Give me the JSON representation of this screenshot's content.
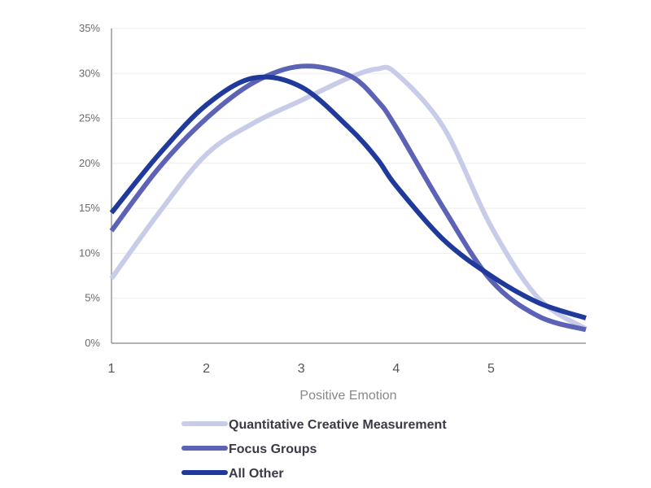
{
  "chart_data": {
    "type": "line",
    "title": "",
    "xlabel": "Positive Emotion",
    "ylabel": "",
    "xlim": [
      1,
      6
    ],
    "ylim": [
      0,
      35
    ],
    "x_ticks": [
      "1",
      "2",
      "3",
      "4",
      "5"
    ],
    "y_ticks": [
      "0%",
      "5%",
      "10%",
      "15%",
      "20%",
      "25%",
      "30%",
      "35%"
    ],
    "grid": "horizontal",
    "legend_placement": "bottom",
    "x": [
      1,
      1.5,
      2,
      2.5,
      3,
      3.5,
      3.8,
      4,
      4.5,
      5,
      5.5,
      6
    ],
    "series": [
      {
        "name": "Quantitative Creative Measurement",
        "color": "#c9cce8",
        "values": [
          7.2,
          14.5,
          21,
          24.5,
          27,
          29.5,
          30.5,
          30,
          24,
          13,
          5,
          1.6
        ]
      },
      {
        "name": "Focus Groups",
        "color": "#5c62b5",
        "values": [
          12.5,
          19.5,
          25,
          29,
          30.8,
          29.8,
          27,
          24,
          15,
          7,
          3,
          1.5
        ]
      },
      {
        "name": "All Other",
        "color": "#1f3a9a",
        "values": [
          14.5,
          21,
          26.5,
          29.5,
          28.5,
          24,
          20.5,
          17.5,
          11.5,
          7.5,
          4.5,
          2.8
        ]
      }
    ]
  }
}
